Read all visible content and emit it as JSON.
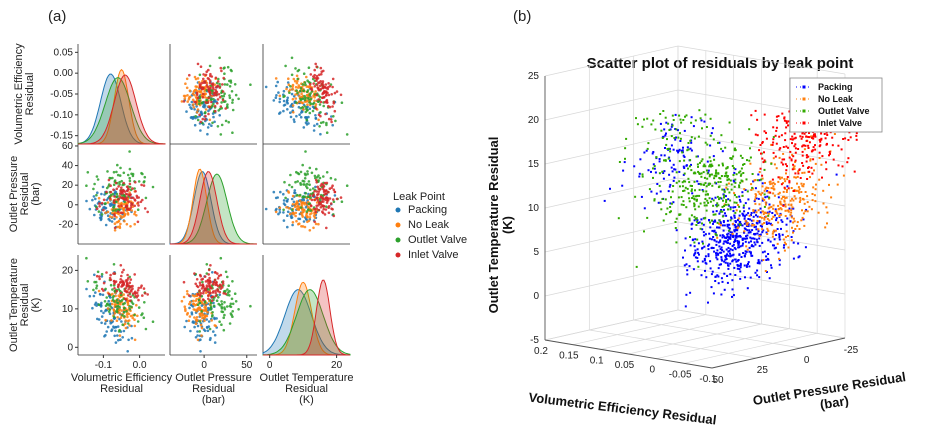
{
  "panel_a_label": "(a)",
  "panel_b_label": "(b)",
  "colors": {
    "Packing": "#1f77b4",
    "No Leak": "#ff7f0e",
    "Outlet Valve": "#2ca02c",
    "Inlet Valve": "#d62728",
    "Packing_3d": "#0000ff",
    "No Leak_3d": "#ff7f0e",
    "Outlet Valve_3d": "#33aa00",
    "Inlet Valve_3d": "#ff0000"
  },
  "chart_data": [
    {
      "type": "scatter",
      "subtype": "pairplot",
      "variables": [
        {
          "key": "vol",
          "label_lines": [
            "Volumetric Efficiency",
            "Residual"
          ],
          "range": [
            -0.17,
            0.07
          ],
          "diag_ticks": [
            "0.05",
            "0.00",
            "-0.05",
            "-0.10",
            "-0.15"
          ],
          "bottom_ticks": [
            "-0.1",
            "0.0"
          ]
        },
        {
          "key": "press",
          "label_lines": [
            "Outlet Pressure",
            "Residual",
            "(bar)"
          ],
          "range": [
            -40,
            62
          ],
          "left_ticks": [
            "60",
            "40",
            "20",
            "0",
            "-20"
          ],
          "bottom_ticks": [
            "0",
            "50"
          ]
        },
        {
          "key": "temp",
          "label_lines": [
            "Outlet Temperature",
            "Residual",
            "(K)"
          ],
          "range": [
            -2,
            24
          ],
          "left_ticks": [
            "20",
            "10",
            "0"
          ],
          "bottom_ticks": [
            "0",
            "20"
          ]
        }
      ],
      "legend_title": "Leak Point",
      "legend_entries": [
        "Packing",
        "No Leak",
        "Outlet Valve",
        "Inlet Valve"
      ],
      "series": [
        {
          "name": "Packing",
          "vol_mean": -0.08,
          "vol_sd": 0.028,
          "press_mean": -2,
          "press_sd": 10,
          "temp_mean": 8.5,
          "temp_sd": 4.0
        },
        {
          "name": "No Leak",
          "vol_mean": -0.05,
          "vol_sd": 0.02,
          "press_mean": -5,
          "press_sd": 8,
          "temp_mean": 10.0,
          "temp_sd": 2.5
        },
        {
          "name": "Outlet Valve",
          "vol_mean": -0.06,
          "vol_sd": 0.035,
          "press_mean": 15,
          "press_sd": 12,
          "temp_mean": 12.0,
          "temp_sd": 4.0
        },
        {
          "name": "Inlet Valve",
          "vol_mean": -0.04,
          "vol_sd": 0.03,
          "press_mean": 5,
          "press_sd": 10,
          "temp_mean": 16.0,
          "temp_sd": 2.0
        }
      ],
      "points_per_series": 90
    },
    {
      "type": "scatter",
      "subtype": "3d",
      "title": "Scatter plot of residuals by leak point",
      "xlabel": "Volumetric Efficiency Residual",
      "ylabel_lines": [
        "Outlet Pressure Residual",
        "(bar)"
      ],
      "zlabel_lines": [
        "Outlet Temperature Residual",
        "(K)"
      ],
      "x_ticks": [
        "0.2",
        "0.15",
        "0.1",
        "0.05",
        "0",
        "-0.05",
        "-0.1"
      ],
      "y_ticks": [
        "50",
        "25",
        "0",
        "-25"
      ],
      "z_ticks": [
        "25",
        "20",
        "15",
        "10",
        "5",
        "0",
        "-5"
      ],
      "legend_entries": [
        "Packing",
        "No Leak",
        "Outlet Valve",
        "Inlet Valve"
      ],
      "clusters": [
        {
          "name": "Packing",
          "pieces": [
            {
              "vol": -0.02,
              "press": 10,
              "temp": 7,
              "n": 520
            },
            {
              "vol": 0.06,
              "press": 20,
              "temp": 16,
              "n": 120
            }
          ]
        },
        {
          "name": "No Leak",
          "pieces": [
            {
              "vol": -0.05,
              "press": -5,
              "temp": 11,
              "n": 280
            }
          ]
        },
        {
          "name": "Outlet Valve",
          "pieces": [
            {
              "vol": 0.0,
              "press": 20,
              "temp": 13,
              "n": 300
            },
            {
              "vol": 0.08,
              "press": 15,
              "temp": 18,
              "n": 80
            }
          ]
        },
        {
          "name": "Inlet Valve",
          "pieces": [
            {
              "vol": -0.08,
              "press": -10,
              "temp": 18,
              "n": 220
            },
            {
              "vol": -0.03,
              "press": -25,
              "temp": 19,
              "n": 80
            }
          ]
        }
      ]
    }
  ]
}
